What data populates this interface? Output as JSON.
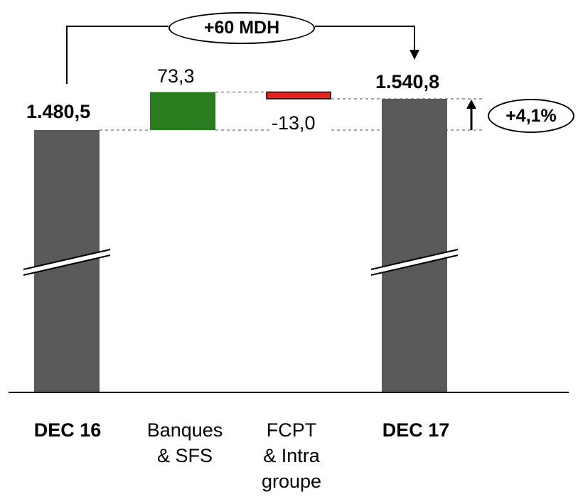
{
  "chart_data": {
    "type": "bar",
    "subtype": "waterfall",
    "categories": [
      {
        "lines": [
          "DEC 16"
        ],
        "bold": true
      },
      {
        "lines": [
          "Banques",
          "& SFS"
        ],
        "bold": false
      },
      {
        "lines": [
          "FCPT",
          "& Intra",
          "groupe"
        ],
        "bold": false
      },
      {
        "lines": [
          "DEC 17"
        ],
        "bold": true
      }
    ],
    "values": [
      1480.5,
      73.3,
      -13.0,
      1540.8
    ],
    "value_labels": [
      "1.480,5",
      "73,3",
      "-13,0",
      "1.540,8"
    ],
    "axis_break": true,
    "annotations": {
      "difference_label": "+60 MDH",
      "growth_label": "+4,1%"
    },
    "colors": {
      "total": "#595959",
      "increase": "#2a7d1f",
      "decrease": "#e8251c",
      "decrease_border": "#000000",
      "connector": "#888888"
    }
  }
}
